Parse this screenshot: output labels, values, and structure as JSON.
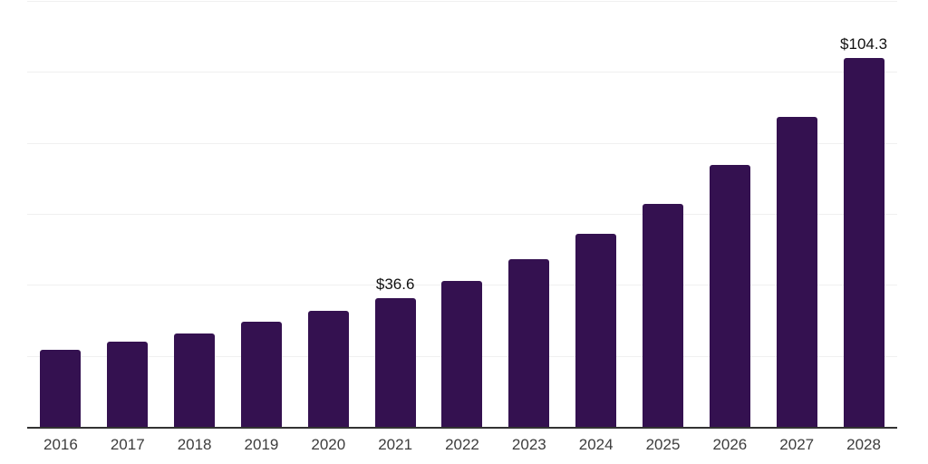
{
  "page": {
    "background_color": "#ffffff"
  },
  "chart_data": {
    "type": "bar",
    "title": "",
    "xlabel": "",
    "ylabel": "",
    "categories": [
      "2016",
      "2017",
      "2018",
      "2019",
      "2020",
      "2021",
      "2022",
      "2023",
      "2024",
      "2025",
      "2026",
      "2027",
      "2028"
    ],
    "values": [
      22.0,
      24.3,
      26.6,
      29.9,
      33.0,
      36.6,
      41.4,
      47.5,
      54.6,
      63.1,
      74.0,
      87.6,
      104.3
    ],
    "point_labels": [
      "",
      "",
      "",
      "",
      "",
      "$36.6",
      "",
      "",
      "",
      "",
      "",
      "",
      "$104.3"
    ],
    "labeled_points": [
      {
        "category": "2021",
        "label": "$36.6"
      },
      {
        "category": "2028",
        "label": "$104.3"
      }
    ],
    "ylim": [
      0,
      120
    ],
    "gridline_values": [
      20,
      40,
      60,
      80,
      100,
      120
    ],
    "grid": true,
    "legend": false,
    "y_tick_labels_visible": false,
    "colors": {
      "bar": "#341150",
      "gridline": "#f0f0f0",
      "axis_line": "#333333",
      "tick_label": "#3d3d3d",
      "value_label": "#111111",
      "background": "#ffffff"
    }
  }
}
